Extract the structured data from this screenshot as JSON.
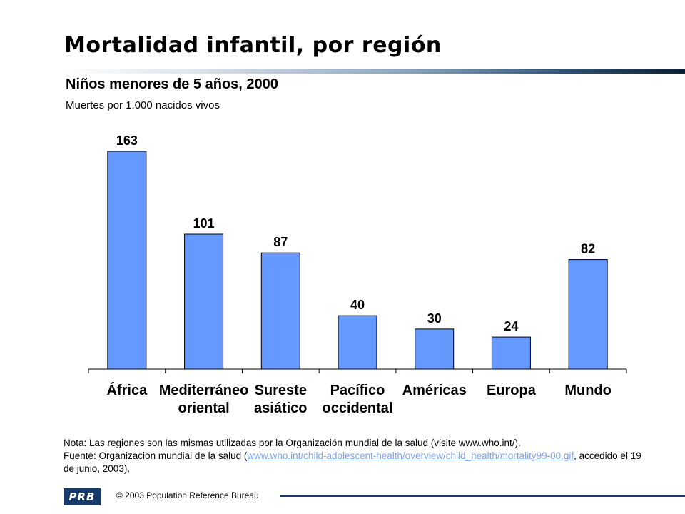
{
  "header": {
    "title": "Mortalidad infantil, por región",
    "subtitle": "Niños menores de 5 años, 2000",
    "units": "Muertes por 1.000 nacidos vivos"
  },
  "chart_data": {
    "type": "bar",
    "categories": [
      [
        "África"
      ],
      [
        "Mediterráneo",
        "oriental"
      ],
      [
        "Sureste",
        "asiático"
      ],
      [
        "Pacífico",
        "occidental"
      ],
      [
        "Américas"
      ],
      [
        "Europa"
      ],
      [
        "Mundo"
      ]
    ],
    "values": [
      163,
      101,
      87,
      40,
      30,
      24,
      82
    ],
    "value_labels": [
      "163",
      "101",
      "87",
      "40",
      "30",
      "24",
      "82"
    ],
    "title": "Mortalidad infantil, por región",
    "subtitle": "Niños menores de 5 años, 2000",
    "ylabel": "Muertes por 1.000 nacidos vivos",
    "ylim": [
      0,
      170
    ],
    "grid": false,
    "bar_color": "#6699ff"
  },
  "notes": {
    "note": "Nota: Las regiones son las mismas utilizadas por la Organización mundial de la salud (visite www.who.int/).",
    "source_prefix": "Fuente: Organización mundial de la salud (",
    "source_link": "www.who.int/child-adolescent-health/overview/child_health/mortality99-00.gif",
    "source_suffix": ", accedido el 19 de junio, 2003)."
  },
  "footer": {
    "logo_text": "PRB",
    "copyright": "© 2003 Population Reference Bureau"
  },
  "colors": {
    "accent": "#163a6a",
    "link": "#7fa3e6"
  }
}
